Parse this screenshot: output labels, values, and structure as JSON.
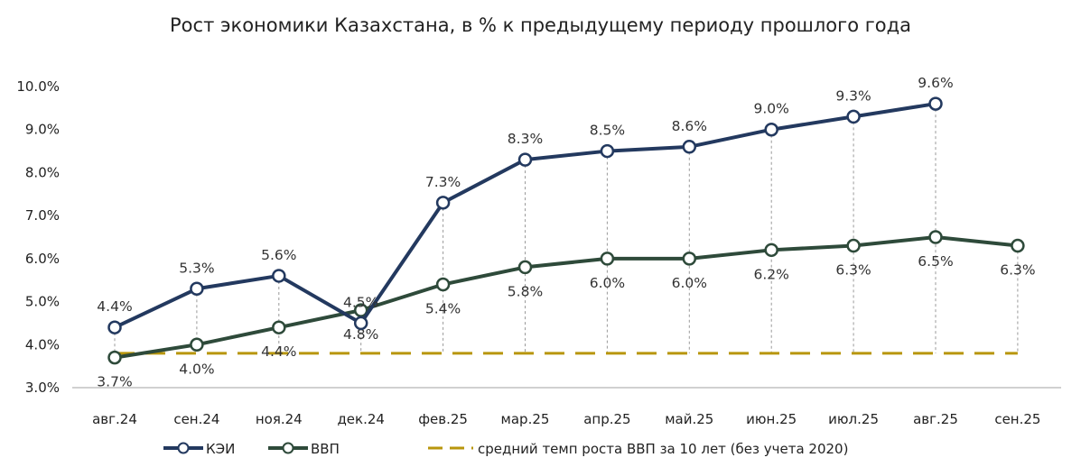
{
  "chart_data": {
    "type": "line",
    "title": "Рост экономики Казахстана, в % к предыдущему периоду прошлого года",
    "xlabel": "",
    "ylabel": "",
    "categories": [
      "авг.24",
      "сен.24",
      "ноя.24",
      "дек.24",
      "фев.25",
      "мар.25",
      "апр.25",
      "май.25",
      "июн.25",
      "июл.25",
      "авг.25",
      "сен.25"
    ],
    "ylim": [
      3.0,
      10.0
    ],
    "yticks": [
      "3.0%",
      "4.0%",
      "5.0%",
      "6.0%",
      "7.0%",
      "8.0%",
      "9.0%",
      "10.0%"
    ],
    "series": [
      {
        "name": "КЭИ",
        "color": "#23395f",
        "values": [
          4.4,
          5.3,
          5.6,
          4.5,
          7.3,
          8.3,
          8.5,
          8.6,
          9.0,
          9.3,
          9.6,
          null
        ],
        "labels": [
          "4.4%",
          "5.3%",
          "5.6%",
          "4.5%",
          "7.3%",
          "8.3%",
          "8.5%",
          "8.6%",
          "9.0%",
          "9.3%",
          "9.6%",
          ""
        ]
      },
      {
        "name": "ВВП",
        "color": "#2e4a3a",
        "values": [
          3.7,
          4.0,
          4.4,
          4.8,
          5.4,
          5.8,
          6.0,
          6.0,
          6.2,
          6.3,
          6.5,
          6.3
        ],
        "labels": [
          "3.7%",
          "4.0%",
          "4.4%",
          "4.8%",
          "5.4%",
          "5.8%",
          "6.0%",
          "6.0%",
          "6.2%",
          "6.3%",
          "6.5%",
          "6.3%"
        ]
      },
      {
        "name": "средний темп роста ВВП за 10 лет (без учета 2020)",
        "color": "#b8960c",
        "value": 3.8,
        "style": "dashed"
      }
    ],
    "legend": "bottom",
    "grid": false
  }
}
